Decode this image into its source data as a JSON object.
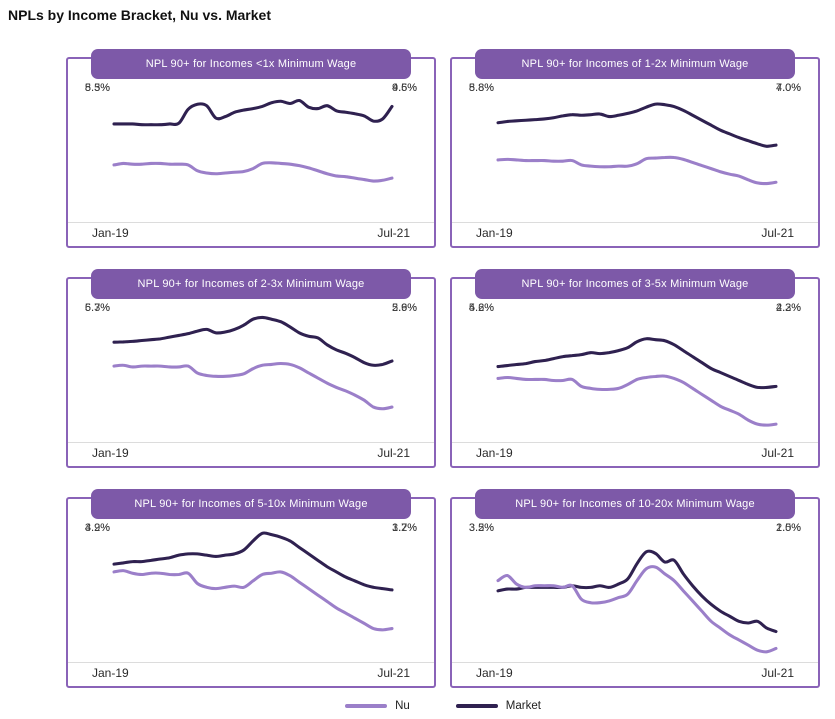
{
  "title": "NPLs by Income Bracket, Nu vs. Market",
  "legend": [
    {
      "label": "Nu",
      "color": "#9b7fc9"
    },
    {
      "label": "Market",
      "color": "#2f2150"
    }
  ],
  "colors": {
    "panel_border": "#8a63b8",
    "header_bg": "#7d59a8",
    "header_text": "#ffffff",
    "nu_line": "#9b7fc9",
    "market_line": "#2f2150",
    "baseline": "#dcdcdc",
    "value_label_text": "#3d3d3d",
    "axis_label_text": "#2a2a2a"
  },
  "chart_data": [
    {
      "type": "line",
      "title": "NPL 90+ for Incomes <1x Minimum Wage",
      "x_start": "Jan-19",
      "x_end": "Jul-21",
      "n_points": 31,
      "unit": "%",
      "ylim": [
        1.6,
        11.1
      ],
      "grid": false,
      "labels": {
        "market_start": "8.3%",
        "nu_start": "5.5%",
        "market_end": "9.5%",
        "nu_end": "4.6%"
      },
      "series": [
        {
          "name": "Nu",
          "color": "#9b7fc9",
          "values": [
            5.5,
            5.6,
            5.55,
            5.55,
            5.6,
            5.6,
            5.55,
            5.55,
            5.5,
            5.1,
            4.95,
            4.9,
            4.95,
            5.0,
            5.05,
            5.25,
            5.6,
            5.65,
            5.6,
            5.55,
            5.45,
            5.3,
            5.1,
            4.9,
            4.75,
            4.7,
            4.6,
            4.5,
            4.4,
            4.45,
            4.6
          ]
        },
        {
          "name": "Market",
          "color": "#2f2150",
          "values": [
            8.3,
            8.3,
            8.3,
            8.25,
            8.25,
            8.25,
            8.3,
            8.35,
            9.3,
            9.65,
            9.55,
            8.7,
            8.8,
            9.1,
            9.25,
            9.35,
            9.5,
            9.75,
            9.85,
            9.7,
            9.9,
            9.45,
            9.35,
            9.55,
            9.2,
            9.1,
            9.0,
            8.85,
            8.5,
            8.65,
            9.5
          ]
        }
      ]
    },
    {
      "type": "line",
      "title": "NPL 90+ for Incomes of 1-2x Minimum Wage",
      "x_start": "Jan-19",
      "x_end": "Jul-21",
      "n_points": 31,
      "unit": "%",
      "ylim": [
        0.8,
        12.0
      ],
      "grid": false,
      "labels": {
        "market_start": "8.8%",
        "nu_start": "5.8%",
        "market_end": "7.0%",
        "nu_end": "4.0%"
      },
      "series": [
        {
          "name": "Nu",
          "color": "#9b7fc9",
          "values": [
            5.8,
            5.85,
            5.8,
            5.75,
            5.75,
            5.75,
            5.7,
            5.7,
            5.75,
            5.4,
            5.3,
            5.25,
            5.25,
            5.3,
            5.3,
            5.5,
            5.9,
            5.95,
            6.0,
            6.0,
            5.85,
            5.6,
            5.35,
            5.1,
            4.85,
            4.65,
            4.5,
            4.2,
            3.95,
            3.9,
            4.0
          ]
        },
        {
          "name": "Market",
          "color": "#2f2150",
          "values": [
            8.8,
            8.9,
            8.95,
            9.0,
            9.05,
            9.1,
            9.2,
            9.35,
            9.45,
            9.4,
            9.45,
            9.5,
            9.3,
            9.4,
            9.55,
            9.75,
            10.05,
            10.3,
            10.25,
            10.1,
            9.8,
            9.4,
            9.0,
            8.6,
            8.2,
            7.9,
            7.6,
            7.35,
            7.1,
            6.9,
            7.0
          ]
        }
      ]
    },
    {
      "type": "line",
      "title": "NPL 90+ for Incomes of 2-3x Minimum Wage",
      "x_start": "Jan-19",
      "x_end": "Jul-21",
      "n_points": 31,
      "unit": "%",
      "ylim": [
        0.85,
        9.0
      ],
      "grid": false,
      "labels": {
        "market_start": "6.7%",
        "nu_start": "5.3%",
        "market_end": "5.6%",
        "nu_end": "2.9%"
      },
      "series": [
        {
          "name": "Nu",
          "color": "#9b7fc9",
          "values": [
            5.3,
            5.35,
            5.25,
            5.3,
            5.3,
            5.3,
            5.25,
            5.25,
            5.3,
            4.9,
            4.75,
            4.7,
            4.7,
            4.75,
            4.85,
            5.15,
            5.35,
            5.4,
            5.45,
            5.4,
            5.2,
            4.9,
            4.6,
            4.3,
            4.05,
            3.85,
            3.6,
            3.3,
            2.9,
            2.8,
            2.9
          ]
        },
        {
          "name": "Market",
          "color": "#2f2150",
          "values": [
            6.7,
            6.72,
            6.75,
            6.8,
            6.85,
            6.9,
            7.0,
            7.1,
            7.2,
            7.35,
            7.45,
            7.25,
            7.3,
            7.45,
            7.7,
            8.05,
            8.15,
            8.05,
            7.9,
            7.6,
            7.25,
            7.05,
            6.95,
            6.55,
            6.25,
            6.05,
            5.8,
            5.5,
            5.35,
            5.4,
            5.6
          ]
        }
      ]
    },
    {
      "type": "line",
      "title": "NPL 90+ for Incomes of 3-5x Minimum Wage",
      "x_start": "Jan-19",
      "x_end": "Jul-21",
      "n_points": 31,
      "unit": "%",
      "ylim": [
        1.4,
        8.4
      ],
      "grid": false,
      "labels": {
        "market_start": "5.2%",
        "nu_start": "4.6%",
        "market_end": "4.2%",
        "nu_end": "2.3%"
      },
      "series": [
        {
          "name": "Nu",
          "color": "#9b7fc9",
          "values": [
            4.6,
            4.65,
            4.6,
            4.55,
            4.55,
            4.55,
            4.5,
            4.5,
            4.55,
            4.2,
            4.1,
            4.05,
            4.05,
            4.1,
            4.3,
            4.55,
            4.65,
            4.7,
            4.72,
            4.6,
            4.4,
            4.1,
            3.8,
            3.5,
            3.2,
            3.0,
            2.8,
            2.5,
            2.3,
            2.25,
            2.3
          ]
        },
        {
          "name": "Market",
          "color": "#2f2150",
          "values": [
            5.2,
            5.25,
            5.3,
            5.35,
            5.45,
            5.5,
            5.6,
            5.7,
            5.75,
            5.8,
            5.9,
            5.85,
            5.9,
            6.0,
            6.15,
            6.45,
            6.6,
            6.55,
            6.5,
            6.3,
            6.0,
            5.7,
            5.4,
            5.1,
            4.9,
            4.7,
            4.5,
            4.3,
            4.15,
            4.15,
            4.2
          ]
        }
      ]
    },
    {
      "type": "line",
      "title": "NPL 90+ for Incomes of 5-10x Minimum Wage",
      "x_start": "Jan-19",
      "x_end": "Jul-21",
      "n_points": 31,
      "unit": "%",
      "ylim": [
        0.4,
        5.8
      ],
      "grid": false,
      "labels": {
        "market_start": "4.2%",
        "nu_start": "3.9%",
        "market_end": "3.2%",
        "nu_end": "1.7%"
      },
      "series": [
        {
          "name": "Nu",
          "color": "#9b7fc9",
          "values": [
            3.9,
            3.95,
            3.85,
            3.8,
            3.85,
            3.85,
            3.8,
            3.8,
            3.85,
            3.45,
            3.3,
            3.25,
            3.3,
            3.35,
            3.3,
            3.55,
            3.8,
            3.85,
            3.9,
            3.75,
            3.5,
            3.25,
            3.0,
            2.75,
            2.5,
            2.3,
            2.1,
            1.9,
            1.7,
            1.65,
            1.7
          ]
        },
        {
          "name": "Market",
          "color": "#2f2150",
          "values": [
            4.2,
            4.25,
            4.3,
            4.3,
            4.35,
            4.4,
            4.45,
            4.55,
            4.6,
            4.6,
            4.55,
            4.5,
            4.55,
            4.6,
            4.75,
            5.1,
            5.4,
            5.35,
            5.25,
            5.1,
            4.85,
            4.6,
            4.35,
            4.1,
            3.9,
            3.7,
            3.55,
            3.4,
            3.3,
            3.25,
            3.2
          ]
        }
      ]
    },
    {
      "type": "line",
      "title": "NPL 90+ for Incomes of 10-20x Minimum Wage",
      "x_start": "Jan-19",
      "x_end": "Jul-21",
      "n_points": 31,
      "unit": "%",
      "ylim": [
        1.1,
        5.2
      ],
      "grid": false,
      "labels": {
        "nu_start": "3.5%",
        "market_start": "3.2%",
        "market_end": "2.0%",
        "nu_end": "1.5%"
      },
      "series": [
        {
          "name": "Nu",
          "color": "#9b7fc9",
          "values": [
            3.5,
            3.65,
            3.4,
            3.3,
            3.35,
            3.35,
            3.35,
            3.3,
            3.35,
            2.95,
            2.85,
            2.85,
            2.9,
            3.0,
            3.1,
            3.5,
            3.85,
            3.9,
            3.7,
            3.5,
            3.2,
            2.9,
            2.6,
            2.3,
            2.1,
            1.9,
            1.75,
            1.6,
            1.45,
            1.4,
            1.5
          ]
        },
        {
          "name": "Market",
          "color": "#2f2150",
          "values": [
            3.2,
            3.25,
            3.25,
            3.3,
            3.3,
            3.3,
            3.3,
            3.3,
            3.35,
            3.3,
            3.3,
            3.35,
            3.3,
            3.4,
            3.55,
            4.0,
            4.35,
            4.3,
            4.05,
            4.1,
            3.7,
            3.35,
            3.05,
            2.8,
            2.6,
            2.45,
            2.3,
            2.25,
            2.3,
            2.1,
            2.0
          ]
        }
      ]
    }
  ]
}
